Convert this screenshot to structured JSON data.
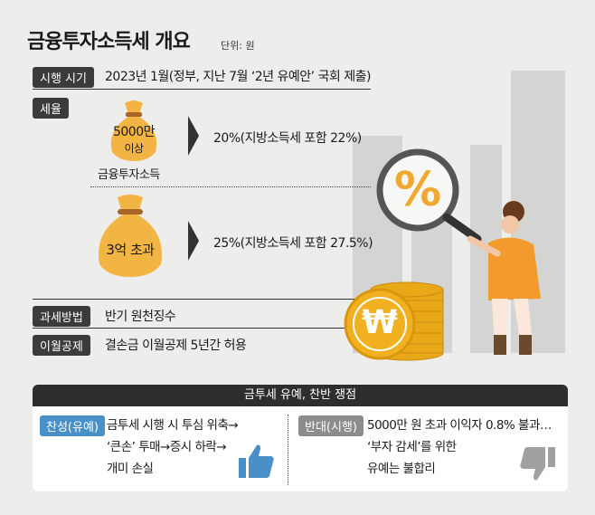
{
  "header": {
    "title": "금융투자소득세 개요",
    "unit": "단위: 원"
  },
  "rows": {
    "schedule": {
      "label": "시행 시기",
      "text": "2023년 1월(정부, 지난 7월 ‘2년 유예안’ 국회 제출)"
    },
    "tax_rate": {
      "label": "세율",
      "tier1": {
        "bag_line1": "5000만",
        "bag_line2": "이상",
        "caption": "금융투자소득",
        "rate": "20%(지방소득세 포함 22%)"
      },
      "tier2": {
        "bag_text": "3억 초과",
        "rate": "25%(지방소득세 포함 27.5%)"
      }
    },
    "method": {
      "label": "과세방법",
      "text": "반기 원천징수"
    },
    "carryover": {
      "label": "이월공제",
      "text": "결손금 이월공제 5년간 허용"
    }
  },
  "illustration": {
    "percent_sign": "%",
    "coin_symbol": "₩"
  },
  "debate": {
    "title": "금투세 유예, 찬반 쟁점",
    "pro": {
      "label": "찬성(유예)",
      "lines": [
        "금투세 시행 시 투심 위축→",
        "‘큰손’ 투매→증시 하락→",
        "개미 손실"
      ]
    },
    "con": {
      "label": "반대(시행)",
      "lines": [
        "5000만 원 초과 이익자 0.8% 불과…",
        "‘부자 감세’를 위한",
        "유예는 불합리"
      ]
    }
  },
  "colors": {
    "bag": "#f2b544",
    "coin": "#f0b020",
    "accent_blue": "#4a90c8",
    "woman_top": "#f39a2e"
  }
}
